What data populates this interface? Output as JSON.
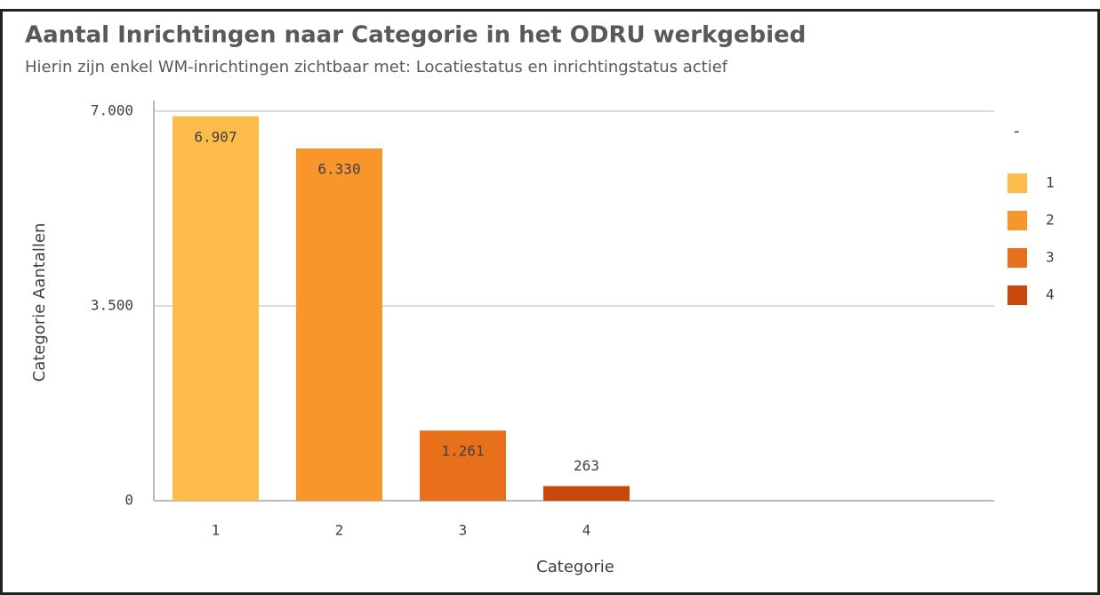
{
  "chart_data": {
    "type": "bar",
    "title": "Aantal Inrichtingen naar Categorie in het ODRU werkgebied",
    "subtitle": "Hierin zijn enkel WM-inrichtingen zichtbaar met: Locatiestatus en inrichtingstatus actief",
    "x_label": "Categorie",
    "y_label": "Categorie Aantallen",
    "categories": [
      "1",
      "2",
      "3",
      "4"
    ],
    "values": [
      6907,
      6330,
      1261,
      263
    ],
    "value_labels": [
      "6.907",
      "6.330",
      "1.261",
      "263"
    ],
    "colors": [
      "#fdbc4a",
      "#f8962b",
      "#e8701b",
      "#c9490c"
    ],
    "ylim": [
      0,
      7000
    ],
    "yticks": [
      0,
      {
        "value": 3500,
        "label": "3.500"
      },
      {
        "value": 7000,
        "label": "7.000"
      }
    ],
    "grid": true,
    "legend_title": "-",
    "legend": "right"
  }
}
